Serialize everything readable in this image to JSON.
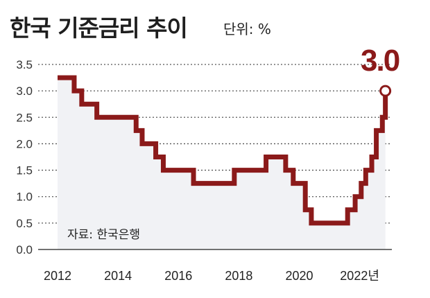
{
  "header": {
    "title": "한국 기준금리 추이",
    "unit": "단위: %"
  },
  "source": "자료: 한국은행",
  "callout": "3.0",
  "x_unit_suffix": "년",
  "colors": {
    "line": "#8b1a1a",
    "area": "#f1f2f5",
    "grid": "#555555"
  },
  "chart_data": {
    "type": "line",
    "step": true,
    "title": "한국 기준금리 추이",
    "ylabel": "단위: %",
    "ylim": [
      0,
      3.5
    ],
    "yticks": [
      "0.0",
      "0.5",
      "1.0",
      "1.5",
      "2.0",
      "2.5",
      "3.0",
      "3.5"
    ],
    "xlim": [
      2012,
      2022.95
    ],
    "xticks": [
      "2012",
      "2014",
      "2016",
      "2018",
      "2020",
      "2022"
    ],
    "grid": "horizontal dotted",
    "series": [
      {
        "x": [
          2012.0,
          2012.55,
          2012.8,
          2013.3,
          2014.6,
          2014.8,
          2015.25,
          2015.5,
          2016.5,
          2017.85,
          2018.9,
          2019.55,
          2019.8,
          2020.2,
          2020.4,
          2021.6,
          2021.85,
          2022.05,
          2022.2,
          2022.4,
          2022.55,
          2022.75,
          2022.85
        ],
        "y": [
          3.25,
          3.0,
          2.75,
          2.5,
          2.25,
          2.0,
          1.75,
          1.5,
          1.25,
          1.5,
          1.75,
          1.5,
          1.25,
          0.75,
          0.5,
          0.75,
          1.0,
          1.25,
          1.5,
          1.75,
          2.25,
          2.5,
          3.0
        ]
      }
    ]
  }
}
